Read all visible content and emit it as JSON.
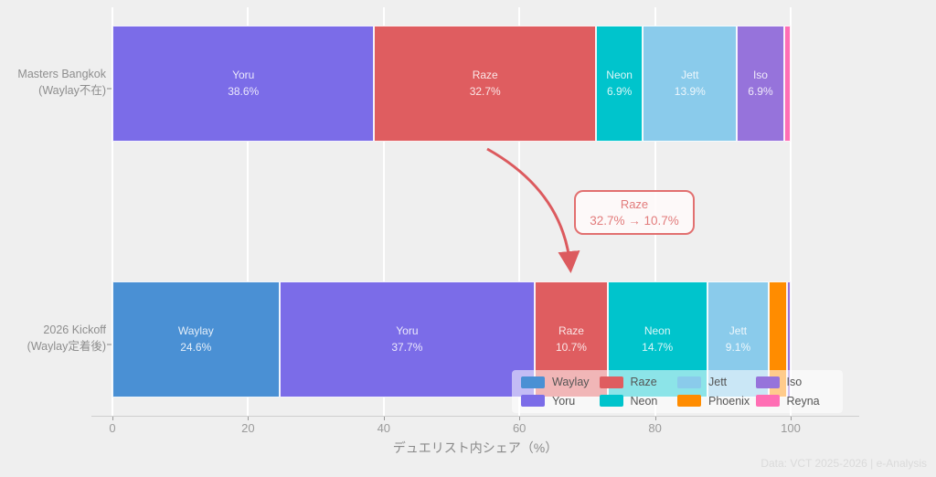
{
  "chart_data": {
    "type": "bar",
    "orientation": "horizontal-stacked",
    "title": "",
    "xlabel": "デュエリスト内シェア（%）",
    "xlim": [
      0,
      100
    ],
    "xticks": [
      0,
      20,
      40,
      60,
      80,
      100
    ],
    "grid": "vertical-white",
    "label_threshold": 5,
    "categories": [
      {
        "line1": "Masters Bangkok",
        "line2": "(Waylay不在)"
      },
      {
        "line1": "2026 Kickoff",
        "line2": "(Waylay定着後)"
      }
    ],
    "series": [
      {
        "name": "Waylay",
        "color": "#4A90D4",
        "values": [
          0,
          24.6
        ]
      },
      {
        "name": "Yoru",
        "color": "#7B6CE8",
        "values": [
          38.6,
          37.7
        ]
      },
      {
        "name": "Raze",
        "color": "#DF5D60",
        "values": [
          32.7,
          10.7
        ]
      },
      {
        "name": "Neon",
        "color": "#00C4CC",
        "values": [
          6.9,
          14.7
        ]
      },
      {
        "name": "Jett",
        "color": "#8ACBEB",
        "values": [
          13.9,
          9.1
        ]
      },
      {
        "name": "Phoenix",
        "color": "#FF8C00",
        "values": [
          0,
          2.6
        ]
      },
      {
        "name": "Iso",
        "color": "#9673DB",
        "values": [
          6.9,
          0.6
        ]
      },
      {
        "name": "Reyna",
        "color": "#FF6EB4",
        "values": [
          1.0,
          0
        ]
      }
    ],
    "legend": {
      "position": "lower right",
      "entries": [
        "Waylay",
        "Yoru",
        "Raze",
        "Neon",
        "Jett",
        "Phoenix",
        "Iso",
        "Reyna"
      ]
    },
    "annotation": {
      "title": "Raze",
      "text": "32.7% → 10.7%"
    },
    "arrow_color": "#DC5A5E",
    "credit": "Data: VCT 2025-2026 | e-Analysis"
  }
}
